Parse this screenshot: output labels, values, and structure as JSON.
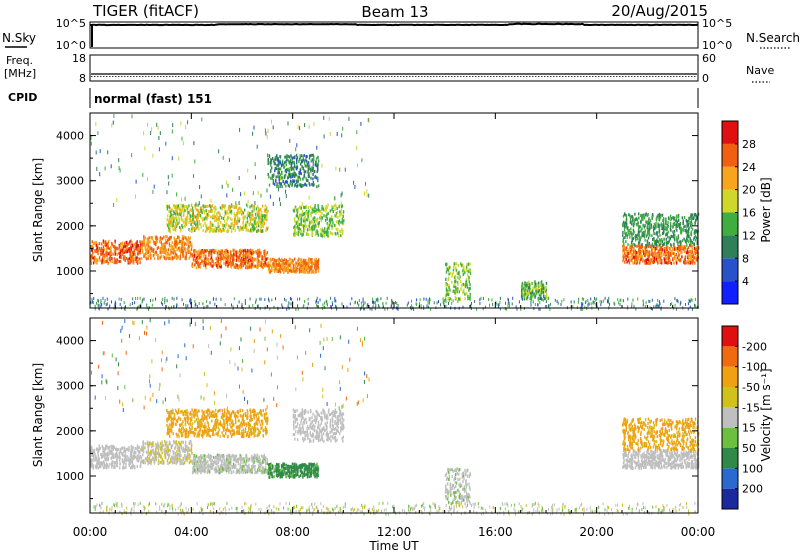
{
  "header": {
    "title_left": "TIGER (fitACF)",
    "title_center": "Beam 13",
    "title_right": "20/Aug/2015"
  },
  "noise_panel": {
    "left_label": "N.Sky",
    "right_label": "N.Search",
    "left_ticks": [
      "10^5",
      "10^0"
    ],
    "right_ticks": [
      "10^5",
      "10^0"
    ]
  },
  "freq_panel": {
    "left_label_1": "Freq.",
    "left_label_2": "[MHz]",
    "right_label": "Nave",
    "left_ticks": [
      "18",
      "8"
    ],
    "right_ticks": [
      "60",
      "0"
    ]
  },
  "cpid": {
    "label": "CPID",
    "value": "normal (fast) 151"
  },
  "x_axis": {
    "label": "Time UT",
    "ticks": [
      "00:00",
      "04:00",
      "08:00",
      "12:00",
      "16:00",
      "20:00",
      "00:00"
    ]
  },
  "power_panel": {
    "ylabel": "Slant Range [km]",
    "yticks": [
      "1000",
      "2000",
      "3000",
      "4000"
    ],
    "colorbar_label": "Power [dB]",
    "colorbar_ticks": [
      "4",
      "8",
      "12",
      "16",
      "20",
      "24",
      "28"
    ],
    "colorbar_colors": [
      "#1020ff",
      "#2a52c8",
      "#2f7f5a",
      "#3fae3f",
      "#cfd82a",
      "#f7a51c",
      "#f06010",
      "#e11010"
    ]
  },
  "velocity_panel": {
    "ylabel": "Slant Range [km]",
    "yticks": [
      "1000",
      "2000",
      "3000",
      "4000"
    ],
    "colorbar_label": "Velocity [m s⁻¹]",
    "colorbar_ticks": [
      "200",
      "100",
      "50",
      "15",
      "-15",
      "-50",
      "-100",
      "-200"
    ],
    "colorbar_colors": [
      "#1a2a9c",
      "#2a6ad0",
      "#2f8a4a",
      "#6cc040",
      "#bfbfbf",
      "#d0c21a",
      "#f0a010",
      "#f06a10",
      "#e01010"
    ]
  },
  "chart_data": {
    "type": "heatmap",
    "x_range_hours": [
      0,
      24
    ],
    "y_range_km": [
      180,
      4500
    ],
    "power_regions": [
      {
        "t": [
          0,
          2
        ],
        "r": [
          1200,
          1700
        ],
        "db": 26
      },
      {
        "t": [
          2,
          4
        ],
        "r": [
          1300,
          1800
        ],
        "db": 24
      },
      {
        "t": [
          4,
          7
        ],
        "r": [
          1100,
          1500
        ],
        "db": 25
      },
      {
        "t": [
          7,
          9
        ],
        "r": [
          1000,
          1300
        ],
        "db": 24
      },
      {
        "t": [
          3,
          7
        ],
        "r": [
          1900,
          2500
        ],
        "db": 18
      },
      {
        "t": [
          8,
          10
        ],
        "r": [
          1800,
          2500
        ],
        "db": 16
      },
      {
        "t": [
          7,
          9
        ],
        "r": [
          2900,
          3600
        ],
        "db": 10
      },
      {
        "t": [
          14,
          15
        ],
        "r": [
          400,
          1200
        ],
        "db": 16
      },
      {
        "t": [
          17,
          18
        ],
        "r": [
          400,
          800
        ],
        "db": 14
      },
      {
        "t": [
          21,
          24
        ],
        "r": [
          1200,
          1600
        ],
        "db": 25
      },
      {
        "t": [
          21,
          24
        ],
        "r": [
          1600,
          2300
        ],
        "db": 12
      }
    ],
    "velocity_regions": [
      {
        "t": [
          0,
          2
        ],
        "r": [
          1200,
          1700
        ],
        "v": 0
      },
      {
        "t": [
          2,
          4
        ],
        "r": [
          1300,
          1800
        ],
        "v": -10
      },
      {
        "t": [
          4,
          7
        ],
        "r": [
          1100,
          1500
        ],
        "v": 5
      },
      {
        "t": [
          7,
          9
        ],
        "r": [
          1000,
          1300
        ],
        "v": 60
      },
      {
        "t": [
          3,
          7
        ],
        "r": [
          1900,
          2500
        ],
        "v": -60
      },
      {
        "t": [
          8,
          10
        ],
        "r": [
          1800,
          2500
        ],
        "v": 0
      },
      {
        "t": [
          14,
          15
        ],
        "r": [
          400,
          1200
        ],
        "v": 5
      },
      {
        "t": [
          21,
          24
        ],
        "r": [
          1200,
          1600
        ],
        "v": 0
      },
      {
        "t": [
          21,
          24
        ],
        "r": [
          1600,
          2300
        ],
        "v": -60
      }
    ],
    "noise_sky_log10": 4.8,
    "frequency_mhz": 10
  }
}
